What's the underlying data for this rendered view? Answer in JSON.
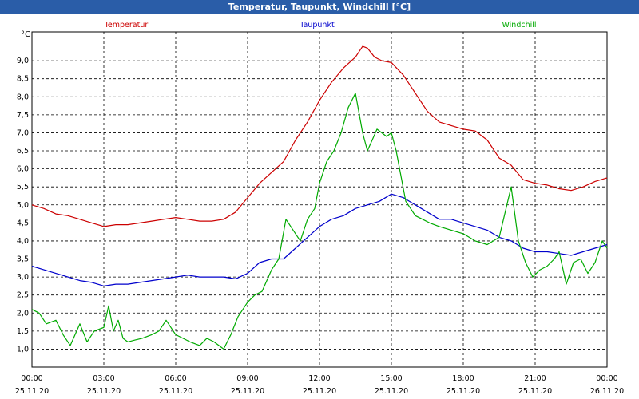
{
  "window": {
    "title": "Temperatur, Taupunkt, Windchill [°C]"
  },
  "chart_data": {
    "type": "line",
    "ylabel": "°C",
    "ylim": [
      0.5,
      9.8
    ],
    "y_ticks": [
      "1,0",
      "1,5",
      "2,0",
      "2,5",
      "3,0",
      "3,5",
      "4,0",
      "4,5",
      "5,0",
      "5,5",
      "6,0",
      "6,5",
      "7,0",
      "7,5",
      "8,0",
      "8,5",
      "9,0"
    ],
    "y_tick_values": [
      1.0,
      1.5,
      2.0,
      2.5,
      3.0,
      3.5,
      4.0,
      4.5,
      5.0,
      5.5,
      6.0,
      6.5,
      7.0,
      7.5,
      8.0,
      8.5,
      9.0
    ],
    "x_ticks": [
      {
        "time": "00:00",
        "date": "25.11.20"
      },
      {
        "time": "03:00",
        "date": "25.11.20"
      },
      {
        "time": "06:00",
        "date": "25.11.20"
      },
      {
        "time": "09:00",
        "date": "25.11.20"
      },
      {
        "time": "12:00",
        "date": "25.11.20"
      },
      {
        "time": "15:00",
        "date": "25.11.20"
      },
      {
        "time": "18:00",
        "date": "25.11.20"
      },
      {
        "time": "21:00",
        "date": "25.11.20"
      },
      {
        "time": "00:00",
        "date": "26.11.20"
      }
    ],
    "x_unit": "hours since 25.11.20 00:00",
    "grid": true,
    "series": [
      {
        "name": "Temperatur",
        "color": "#cc0000",
        "x": [
          0,
          0.5,
          1,
          1.5,
          2,
          2.5,
          3,
          3.5,
          4,
          4.5,
          5,
          5.5,
          6,
          6.5,
          7,
          7.5,
          8,
          8.5,
          9,
          9.5,
          10,
          10.5,
          11,
          11.5,
          12,
          12.5,
          13,
          13.5,
          13.8,
          14,
          14.3,
          14.6,
          15,
          15.5,
          16,
          16.5,
          17,
          17.5,
          18,
          18.5,
          19,
          19.5,
          20,
          20.5,
          21,
          21.5,
          22,
          22.5,
          23,
          23.5,
          24
        ],
        "values": [
          5.0,
          4.9,
          4.75,
          4.7,
          4.6,
          4.5,
          4.4,
          4.45,
          4.45,
          4.5,
          4.55,
          4.6,
          4.65,
          4.6,
          4.55,
          4.55,
          4.6,
          4.8,
          5.2,
          5.6,
          5.9,
          6.2,
          6.8,
          7.3,
          7.9,
          8.4,
          8.8,
          9.1,
          9.4,
          9.35,
          9.1,
          9.0,
          8.95,
          8.6,
          8.1,
          7.6,
          7.3,
          7.2,
          7.1,
          7.05,
          6.8,
          6.3,
          6.1,
          5.7,
          5.6,
          5.55,
          5.45,
          5.4,
          5.5,
          5.65,
          5.75
        ]
      },
      {
        "name": "Taupunkt",
        "color": "#0000cc",
        "x": [
          0,
          0.5,
          1,
          1.5,
          2,
          2.5,
          3,
          3.5,
          4,
          4.5,
          5,
          5.5,
          6,
          6.5,
          7,
          7.5,
          8,
          8.5,
          9,
          9.5,
          10,
          10.5,
          11,
          11.5,
          12,
          12.5,
          13,
          13.5,
          14,
          14.5,
          15,
          15.5,
          16,
          16.5,
          17,
          17.5,
          18,
          18.5,
          19,
          19.5,
          20,
          20.5,
          21,
          21.5,
          22,
          22.5,
          23,
          23.5,
          24
        ],
        "values": [
          3.3,
          3.2,
          3.1,
          3.0,
          2.9,
          2.85,
          2.75,
          2.8,
          2.8,
          2.85,
          2.9,
          2.95,
          3.0,
          3.05,
          3.0,
          3.0,
          3.0,
          2.95,
          3.1,
          3.4,
          3.5,
          3.5,
          3.8,
          4.1,
          4.4,
          4.6,
          4.7,
          4.9,
          5.0,
          5.1,
          5.3,
          5.2,
          5.0,
          4.8,
          4.6,
          4.6,
          4.5,
          4.4,
          4.3,
          4.1,
          4.0,
          3.8,
          3.7,
          3.7,
          3.65,
          3.6,
          3.7,
          3.8,
          3.9
        ]
      },
      {
        "name": "Windchill",
        "color": "#00aa00",
        "x": [
          0,
          0.3,
          0.6,
          1,
          1.3,
          1.6,
          2,
          2.3,
          2.6,
          3,
          3.2,
          3.4,
          3.6,
          3.8,
          4,
          4.3,
          4.6,
          5,
          5.3,
          5.6,
          6,
          6.3,
          6.6,
          7,
          7.3,
          7.6,
          8,
          8.3,
          8.6,
          9,
          9.3,
          9.6,
          10,
          10.3,
          10.6,
          11,
          11.2,
          11.5,
          11.8,
          12,
          12.3,
          12.6,
          12.9,
          13.2,
          13.5,
          13.8,
          14,
          14.2,
          14.4,
          14.6,
          14.8,
          15,
          15.2,
          15.4,
          15.6,
          16,
          16.3,
          16.6,
          17,
          17.5,
          18,
          18.5,
          19,
          19.5,
          20,
          20.3,
          20.6,
          20.9,
          21.2,
          21.5,
          21.8,
          22,
          22.3,
          22.6,
          22.9,
          23.2,
          23.5,
          23.8,
          24
        ],
        "values": [
          2.1,
          2.0,
          1.7,
          1.8,
          1.4,
          1.1,
          1.7,
          1.2,
          1.5,
          1.6,
          2.2,
          1.5,
          1.8,
          1.3,
          1.2,
          1.25,
          1.3,
          1.4,
          1.5,
          1.8,
          1.4,
          1.3,
          1.2,
          1.1,
          1.3,
          1.2,
          1.0,
          1.4,
          1.9,
          2.3,
          2.5,
          2.6,
          3.2,
          3.5,
          4.6,
          4.2,
          4.0,
          4.6,
          4.9,
          5.6,
          6.2,
          6.5,
          7.0,
          7.7,
          8.1,
          7.0,
          6.5,
          6.8,
          7.1,
          7.0,
          6.9,
          7.0,
          6.5,
          5.8,
          5.1,
          4.7,
          4.6,
          4.5,
          4.4,
          4.3,
          4.2,
          4.0,
          3.9,
          4.1,
          5.5,
          4.0,
          3.4,
          3.0,
          3.2,
          3.3,
          3.5,
          3.7,
          2.8,
          3.4,
          3.5,
          3.1,
          3.4,
          4.0,
          3.8
        ]
      }
    ]
  }
}
